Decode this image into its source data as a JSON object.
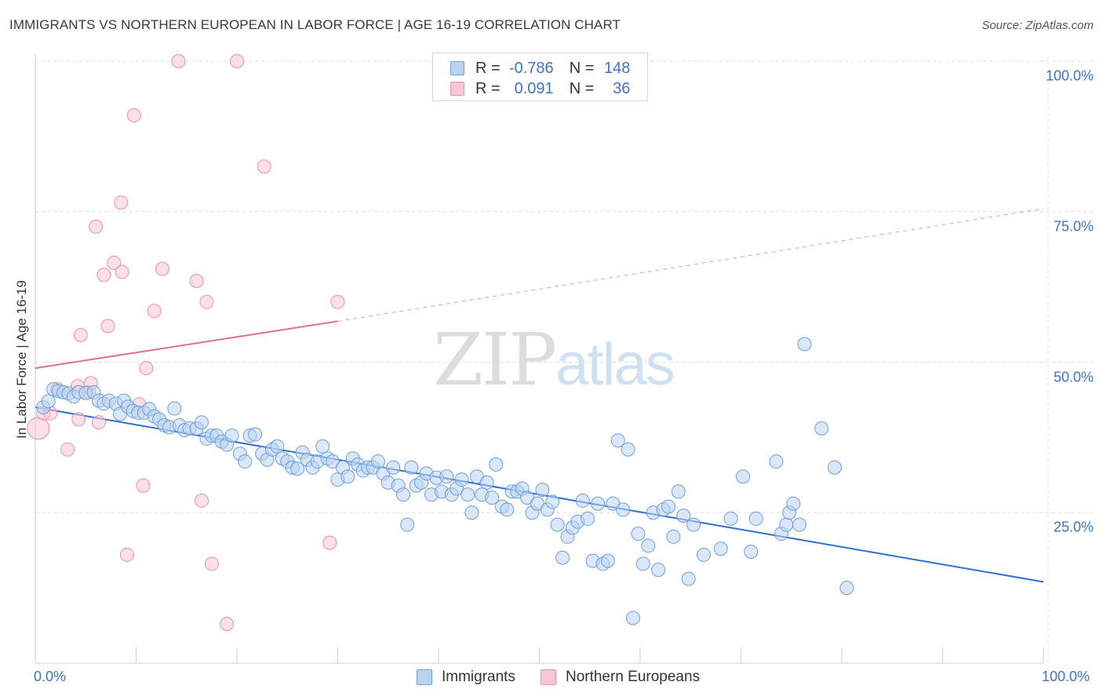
{
  "title": "IMMIGRANTS VS NORTHERN EUROPEAN IN LABOR FORCE | AGE 16-19 CORRELATION CHART",
  "source": "Source: ZipAtlas.com",
  "watermark": {
    "zip": "ZIP",
    "atlas": "atlas"
  },
  "colors": {
    "immigrants_fill": "#b9d3f3",
    "immigrants_stroke": "#6f9fdc",
    "immigrants_line": "#2e6fd0",
    "northern_fill": "#f8c6d5",
    "northern_stroke": "#ea8fac",
    "northern_line": "#e06f95",
    "axis_text": "#3f73c8",
    "grid": "#dddddd"
  },
  "legend": {
    "rows": [
      {
        "r_label": "R =",
        "r_value": "-0.786",
        "n_label": "N =",
        "n_value": "148"
      },
      {
        "r_label": "R =",
        "r_value": "0.091",
        "n_label": "N =",
        "n_value": "36"
      }
    ]
  },
  "bottom_legend": [
    {
      "label": "Immigrants"
    },
    {
      "label": "Northern Europeans"
    }
  ],
  "chart_data": {
    "type": "scatter",
    "ylabel": "In Labor Force | Age 16-19",
    "xlabel": "",
    "xlim": [
      0,
      100
    ],
    "ylim": [
      0,
      102
    ],
    "x_tick_labels": [
      "0.0%",
      "100.0%"
    ],
    "y_ticks": [
      25,
      50,
      75,
      100
    ],
    "y_tick_labels": [
      "25.0%",
      "50.0%",
      "75.0%",
      "100.0%"
    ],
    "grid": "horizontal dashed",
    "legend_position": "top-center",
    "series": [
      {
        "name": "Immigrants",
        "r": -0.786,
        "n": 148,
        "trend": {
          "x0": 0,
          "y0": 42.5,
          "x1": 100,
          "y1": 13.5,
          "style": "solid"
        },
        "points": [
          [
            0.8,
            42.5
          ],
          [
            1.3,
            43.5
          ],
          [
            1.8,
            45.5
          ],
          [
            2.3,
            45.2
          ],
          [
            2.8,
            45.0
          ],
          [
            3.3,
            44.8
          ],
          [
            3.8,
            44.3
          ],
          [
            4.3,
            45.0
          ],
          [
            5.0,
            44.9
          ],
          [
            5.8,
            45.0
          ],
          [
            6.3,
            43.6
          ],
          [
            6.8,
            43.1
          ],
          [
            7.3,
            43.6
          ],
          [
            8.0,
            43.1
          ],
          [
            8.4,
            41.4
          ],
          [
            8.8,
            43.6
          ],
          [
            9.2,
            42.6
          ],
          [
            9.7,
            41.9
          ],
          [
            10.2,
            41.6
          ],
          [
            10.8,
            41.6
          ],
          [
            11.3,
            42.2
          ],
          [
            11.8,
            41.0
          ],
          [
            12.3,
            40.5
          ],
          [
            12.8,
            39.5
          ],
          [
            13.3,
            39.2
          ],
          [
            13.8,
            42.3
          ],
          [
            14.3,
            39.5
          ],
          [
            14.8,
            38.7
          ],
          [
            15.3,
            39.0
          ],
          [
            16.0,
            39.0
          ],
          [
            16.5,
            40.0
          ],
          [
            17.0,
            37.3
          ],
          [
            17.5,
            37.8
          ],
          [
            18.0,
            37.8
          ],
          [
            18.5,
            36.8
          ],
          [
            19.0,
            36.3
          ],
          [
            19.5,
            37.8
          ],
          [
            20.3,
            34.8
          ],
          [
            20.8,
            33.5
          ],
          [
            21.3,
            37.8
          ],
          [
            21.8,
            38.0
          ],
          [
            22.5,
            34.8
          ],
          [
            23.0,
            33.8
          ],
          [
            23.5,
            35.5
          ],
          [
            24.0,
            36.0
          ],
          [
            24.5,
            34.0
          ],
          [
            25.0,
            33.5
          ],
          [
            25.5,
            32.5
          ],
          [
            26.0,
            32.3
          ],
          [
            26.5,
            35.0
          ],
          [
            27.0,
            33.8
          ],
          [
            27.5,
            32.5
          ],
          [
            28.0,
            33.5
          ],
          [
            28.5,
            36.0
          ],
          [
            29.0,
            34.0
          ],
          [
            29.5,
            33.5
          ],
          [
            30.0,
            30.5
          ],
          [
            30.5,
            32.5
          ],
          [
            31.0,
            31.0
          ],
          [
            31.5,
            34.0
          ],
          [
            32.0,
            33.0
          ],
          [
            32.5,
            32.0
          ],
          [
            33.0,
            32.5
          ],
          [
            33.5,
            32.5
          ],
          [
            34.0,
            33.5
          ],
          [
            34.5,
            31.5
          ],
          [
            35.0,
            30.0
          ],
          [
            35.5,
            32.5
          ],
          [
            36.0,
            29.5
          ],
          [
            36.5,
            28.0
          ],
          [
            36.9,
            23.0
          ],
          [
            37.3,
            32.5
          ],
          [
            37.8,
            29.5
          ],
          [
            38.3,
            30.0
          ],
          [
            38.8,
            31.5
          ],
          [
            39.3,
            28.0
          ],
          [
            39.8,
            30.8
          ],
          [
            40.3,
            28.5
          ],
          [
            40.8,
            31.0
          ],
          [
            41.3,
            28.0
          ],
          [
            41.8,
            29.0
          ],
          [
            42.3,
            30.5
          ],
          [
            42.9,
            28.0
          ],
          [
            43.3,
            25.0
          ],
          [
            43.8,
            31.0
          ],
          [
            44.3,
            28.0
          ],
          [
            44.8,
            30.0
          ],
          [
            45.3,
            27.5
          ],
          [
            45.7,
            33.0
          ],
          [
            46.3,
            26.0
          ],
          [
            46.8,
            25.5
          ],
          [
            47.3,
            28.5
          ],
          [
            47.8,
            28.5
          ],
          [
            48.3,
            29.0
          ],
          [
            48.8,
            27.5
          ],
          [
            49.3,
            25.0
          ],
          [
            49.8,
            26.5
          ],
          [
            50.3,
            28.8
          ],
          [
            50.8,
            25.5
          ],
          [
            51.3,
            26.8
          ],
          [
            51.8,
            23.0
          ],
          [
            52.3,
            17.5
          ],
          [
            52.8,
            21.0
          ],
          [
            53.3,
            22.5
          ],
          [
            53.8,
            23.5
          ],
          [
            54.3,
            27.0
          ],
          [
            54.8,
            24.0
          ],
          [
            55.3,
            17.0
          ],
          [
            55.8,
            26.5
          ],
          [
            56.3,
            16.5
          ],
          [
            56.8,
            17.0
          ],
          [
            57.3,
            26.5
          ],
          [
            57.8,
            37.0
          ],
          [
            58.3,
            25.5
          ],
          [
            58.8,
            35.5
          ],
          [
            59.3,
            7.5
          ],
          [
            59.8,
            21.5
          ],
          [
            60.3,
            16.5
          ],
          [
            60.8,
            19.5
          ],
          [
            61.3,
            25.0
          ],
          [
            61.8,
            15.5
          ],
          [
            62.3,
            25.5
          ],
          [
            62.8,
            26.0
          ],
          [
            63.3,
            21.0
          ],
          [
            63.8,
            28.5
          ],
          [
            64.3,
            24.5
          ],
          [
            64.8,
            14.0
          ],
          [
            65.3,
            23.0
          ],
          [
            66.3,
            18.0
          ],
          [
            68.0,
            19.0
          ],
          [
            69.0,
            24.0
          ],
          [
            70.2,
            31.0
          ],
          [
            71.0,
            18.5
          ],
          [
            71.5,
            24.0
          ],
          [
            73.5,
            33.5
          ],
          [
            74.0,
            21.5
          ],
          [
            74.5,
            23.0
          ],
          [
            74.8,
            25.0
          ],
          [
            75.2,
            26.5
          ],
          [
            75.8,
            23.0
          ],
          [
            76.3,
            53.0
          ],
          [
            78.0,
            39.0
          ],
          [
            79.3,
            32.5
          ],
          [
            80.5,
            12.5
          ]
        ]
      },
      {
        "name": "Northern Europeans",
        "r": 0.091,
        "n": 36,
        "trend": {
          "x0": 0,
          "y0": 49.0,
          "x1": 30,
          "y1": 56.8,
          "style": "solid",
          "extended_to": {
            "x": 100,
            "y": 75.5,
            "style": "dashed"
          }
        },
        "points": [
          [
            0.3,
            39.0
          ],
          [
            0.8,
            41.5
          ],
          [
            1.5,
            41.5
          ],
          [
            2.2,
            45.5
          ],
          [
            3.2,
            35.5
          ],
          [
            4.2,
            46.0
          ],
          [
            4.3,
            40.5
          ],
          [
            4.5,
            54.5
          ],
          [
            5.3,
            45.0
          ],
          [
            5.5,
            46.5
          ],
          [
            6.0,
            72.5
          ],
          [
            6.3,
            40.0
          ],
          [
            6.8,
            64.5
          ],
          [
            7.2,
            56.0
          ],
          [
            7.8,
            66.5
          ],
          [
            8.5,
            76.5
          ],
          [
            8.6,
            65.0
          ],
          [
            9.1,
            18.0
          ],
          [
            9.8,
            91.0
          ],
          [
            10.3,
            43.0
          ],
          [
            10.7,
            29.5
          ],
          [
            11.0,
            49.0
          ],
          [
            11.8,
            58.5
          ],
          [
            12.6,
            65.5
          ],
          [
            14.2,
            100.0
          ],
          [
            16.0,
            63.5
          ],
          [
            16.5,
            27.0
          ],
          [
            17.0,
            60.0
          ],
          [
            17.5,
            16.5
          ],
          [
            19.0,
            6.5
          ],
          [
            20.0,
            100.0
          ],
          [
            22.7,
            82.5
          ],
          [
            29.2,
            20.0
          ],
          [
            30.0,
            60.0
          ]
        ]
      }
    ]
  }
}
